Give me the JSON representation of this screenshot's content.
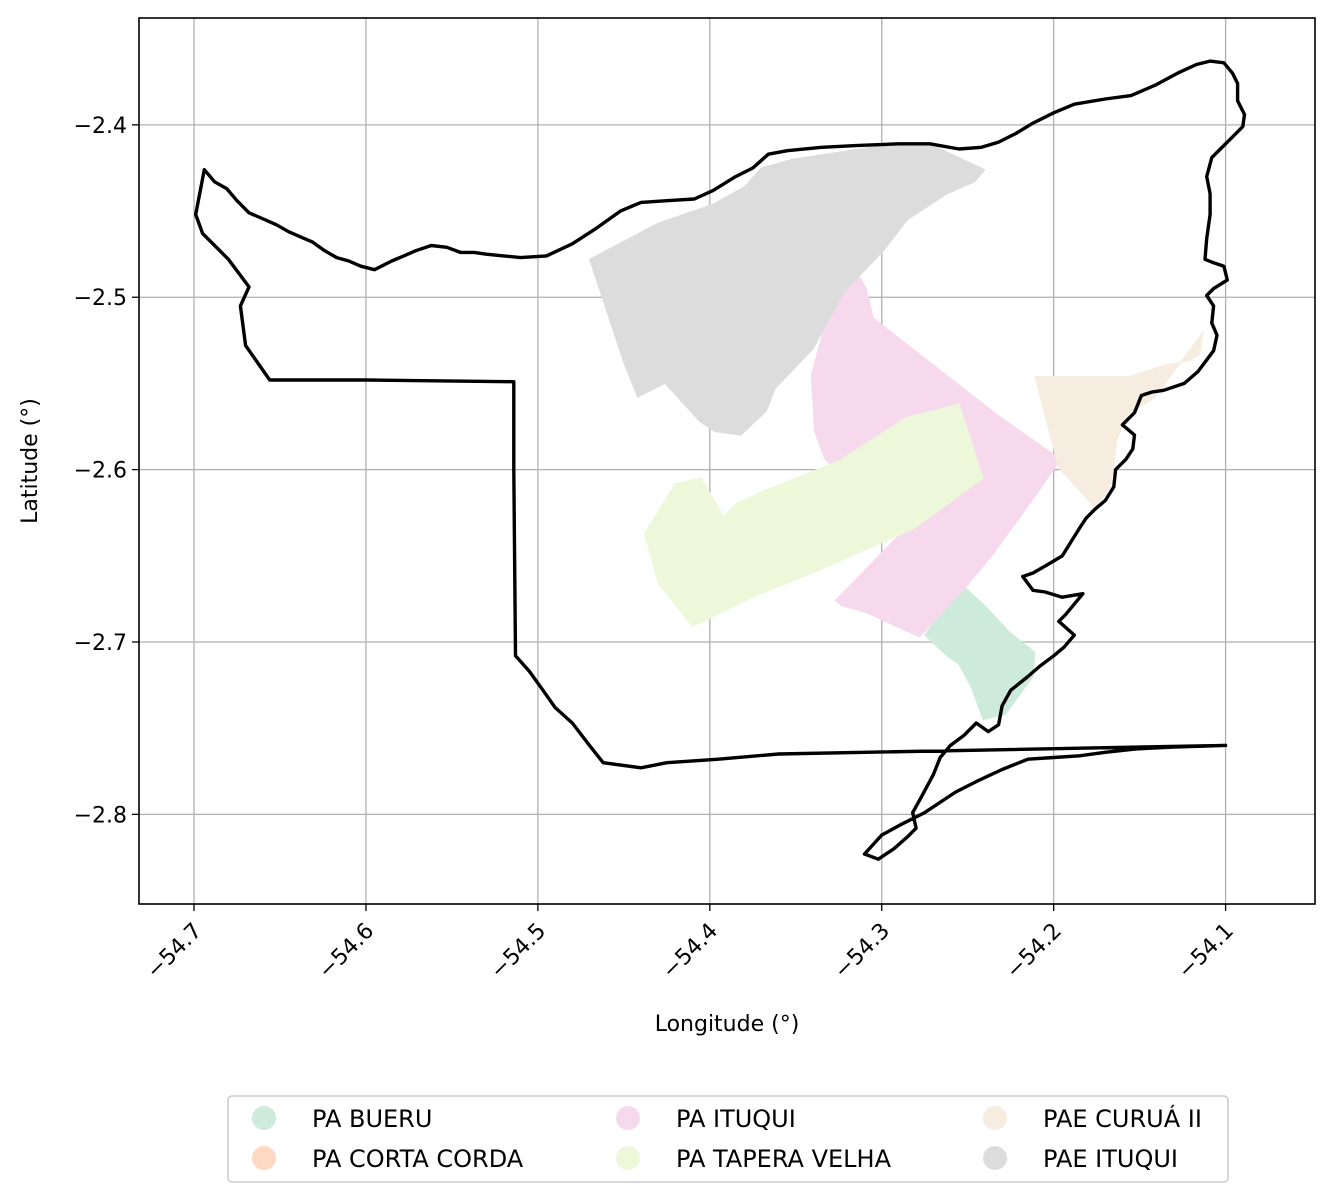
{
  "chart_data": {
    "type": "map",
    "xlabel": "Longitude (°)",
    "ylabel": "Latitude (°)",
    "xlim": [
      -54.732,
      -54.048
    ],
    "ylim": [
      -2.852,
      -2.338
    ],
    "grid": true,
    "legend_placement": "bottom-center",
    "x_ticks": [
      {
        "value": -54.7,
        "label": "−54.7"
      },
      {
        "value": -54.6,
        "label": "−54.6"
      },
      {
        "value": -54.5,
        "label": "−54.5"
      },
      {
        "value": -54.4,
        "label": "−54.4"
      },
      {
        "value": -54.3,
        "label": "−54.3"
      },
      {
        "value": -54.2,
        "label": "−54.2"
      },
      {
        "value": -54.1,
        "label": "−54.1"
      }
    ],
    "y_ticks": [
      {
        "value": -2.4,
        "label": "−2.4"
      },
      {
        "value": -2.5,
        "label": "−2.5"
      },
      {
        "value": -2.6,
        "label": "−2.6"
      },
      {
        "value": -2.7,
        "label": "−2.7"
      },
      {
        "value": -2.8,
        "label": "−2.8"
      }
    ],
    "boundary": {
      "color": "#000000",
      "points": [
        [
          -54.699,
          -2.452
        ],
        [
          -54.694,
          -2.426
        ],
        [
          -54.688,
          -2.433
        ],
        [
          -54.681,
          -2.437
        ],
        [
          -54.675,
          -2.444
        ],
        [
          -54.668,
          -2.451
        ],
        [
          -54.661,
          -2.454
        ],
        [
          -54.652,
          -2.458
        ],
        [
          -54.645,
          -2.462
        ],
        [
          -54.638,
          -2.465
        ],
        [
          -54.631,
          -2.468
        ],
        [
          -54.624,
          -2.473
        ],
        [
          -54.617,
          -2.477
        ],
        [
          -54.61,
          -2.479
        ],
        [
          -54.603,
          -2.482
        ],
        [
          -54.595,
          -2.484
        ],
        [
          -54.585,
          -2.479
        ],
        [
          -54.578,
          -2.476
        ],
        [
          -54.571,
          -2.473
        ],
        [
          -54.562,
          -2.47
        ],
        [
          -54.553,
          -2.471
        ],
        [
          -54.545,
          -2.474
        ],
        [
          -54.537,
          -2.474
        ],
        [
          -54.53,
          -2.475
        ],
        [
          -54.52,
          -2.476
        ],
        [
          -54.51,
          -2.477
        ],
        [
          -54.495,
          -2.476
        ],
        [
          -54.48,
          -2.469
        ],
        [
          -54.466,
          -2.46
        ],
        [
          -54.452,
          -2.45
        ],
        [
          -54.44,
          -2.445
        ],
        [
          -54.425,
          -2.444
        ],
        [
          -54.409,
          -2.443
        ],
        [
          -54.398,
          -2.438
        ],
        [
          -54.385,
          -2.43
        ],
        [
          -54.375,
          -2.425
        ],
        [
          -54.366,
          -2.417
        ],
        [
          -54.355,
          -2.415
        ],
        [
          -54.335,
          -2.413
        ],
        [
          -54.315,
          -2.412
        ],
        [
          -54.29,
          -2.411
        ],
        [
          -54.272,
          -2.411
        ],
        [
          -54.255,
          -2.414
        ],
        [
          -54.242,
          -2.413
        ],
        [
          -54.232,
          -2.41
        ],
        [
          -54.222,
          -2.405
        ],
        [
          -54.212,
          -2.399
        ],
        [
          -54.2,
          -2.393
        ],
        [
          -54.188,
          -2.388
        ],
        [
          -54.17,
          -2.385
        ],
        [
          -54.155,
          -2.383
        ],
        [
          -54.141,
          -2.377
        ],
        [
          -54.128,
          -2.37
        ],
        [
          -54.117,
          -2.365
        ],
        [
          -54.109,
          -2.363
        ],
        [
          -54.101,
          -2.364
        ],
        [
          -54.096,
          -2.37
        ],
        [
          -54.093,
          -2.376
        ],
        [
          -54.093,
          -2.386
        ],
        [
          -54.089,
          -2.394
        ],
        [
          -54.09,
          -2.401
        ],
        [
          -54.096,
          -2.407
        ],
        [
          -54.103,
          -2.414
        ],
        [
          -54.108,
          -2.419
        ],
        [
          -54.111,
          -2.43
        ],
        [
          -54.109,
          -2.44
        ],
        [
          -54.109,
          -2.452
        ],
        [
          -54.111,
          -2.466
        ],
        [
          -54.112,
          -2.478
        ],
        [
          -54.107,
          -2.48
        ],
        [
          -54.101,
          -2.482
        ],
        [
          -54.099,
          -2.49
        ],
        [
          -54.107,
          -2.495
        ],
        [
          -54.111,
          -2.499
        ],
        [
          -54.107,
          -2.505
        ],
        [
          -54.108,
          -2.515
        ],
        [
          -54.105,
          -2.522
        ],
        [
          -54.107,
          -2.531
        ],
        [
          -54.116,
          -2.543
        ],
        [
          -54.124,
          -2.55
        ],
        [
          -54.136,
          -2.554
        ],
        [
          -54.143,
          -2.555
        ],
        [
          -54.149,
          -2.557
        ],
        [
          -54.153,
          -2.567
        ],
        [
          -54.16,
          -2.574
        ],
        [
          -54.153,
          -2.58
        ],
        [
          -54.154,
          -2.588
        ],
        [
          -54.158,
          -2.594
        ],
        [
          -54.164,
          -2.6
        ],
        [
          -54.165,
          -2.61
        ],
        [
          -54.17,
          -2.618
        ],
        [
          -54.176,
          -2.623
        ],
        [
          -54.181,
          -2.628
        ],
        [
          -54.185,
          -2.634
        ],
        [
          -54.19,
          -2.642
        ],
        [
          -54.195,
          -2.65
        ],
        [
          -54.2,
          -2.653
        ],
        [
          -54.205,
          -2.656
        ],
        [
          -54.212,
          -2.66
        ],
        [
          -54.218,
          -2.662
        ],
        [
          -54.212,
          -2.67
        ],
        [
          -54.205,
          -2.671
        ],
        [
          -54.195,
          -2.674
        ],
        [
          -54.183,
          -2.672
        ],
        [
          -54.193,
          -2.684
        ],
        [
          -54.197,
          -2.688
        ],
        [
          -54.188,
          -2.696
        ],
        [
          -54.194,
          -2.703
        ],
        [
          -54.2,
          -2.708
        ],
        [
          -54.208,
          -2.714
        ],
        [
          -54.215,
          -2.72
        ],
        [
          -54.225,
          -2.728
        ],
        [
          -54.23,
          -2.737
        ],
        [
          -54.232,
          -2.748
        ],
        [
          -54.238,
          -2.752
        ],
        [
          -54.245,
          -2.747
        ],
        [
          -54.252,
          -2.754
        ],
        [
          -54.26,
          -2.76
        ],
        [
          -54.266,
          -2.767
        ],
        [
          -54.27,
          -2.777
        ],
        [
          -54.277,
          -2.79
        ],
        [
          -54.282,
          -2.799
        ],
        [
          -54.28,
          -2.808
        ],
        [
          -54.285,
          -2.813
        ],
        [
          -54.293,
          -2.82
        ],
        [
          -54.302,
          -2.826
        ],
        [
          -54.31,
          -2.823
        ],
        [
          -54.3,
          -2.812
        ],
        [
          -54.289,
          -2.806
        ],
        [
          -54.275,
          -2.799
        ],
        [
          -54.257,
          -2.787
        ],
        [
          -54.243,
          -2.78
        ],
        [
          -54.23,
          -2.774
        ],
        [
          -54.215,
          -2.768
        ],
        [
          -54.2,
          -2.767
        ],
        [
          -54.185,
          -2.766
        ],
        [
          -54.17,
          -2.764
        ],
        [
          -54.152,
          -2.762
        ],
        [
          -54.13,
          -2.761
        ],
        [
          -54.1,
          -2.76
        ],
        [
          -54.36,
          -2.765
        ],
        [
          -54.395,
          -2.768
        ],
        [
          -54.425,
          -2.77
        ],
        [
          -54.44,
          -2.773
        ],
        [
          -54.462,
          -2.77
        ],
        [
          -54.47,
          -2.76
        ],
        [
          -54.48,
          -2.747
        ],
        [
          -54.49,
          -2.738
        ],
        [
          -54.497,
          -2.728
        ],
        [
          -54.505,
          -2.717
        ],
        [
          -54.513,
          -2.708
        ],
        [
          -54.514,
          -2.6
        ],
        [
          -54.514,
          -2.549
        ],
        [
          -54.6,
          -2.548
        ],
        [
          -54.656,
          -2.548
        ],
        [
          -54.67,
          -2.528
        ],
        [
          -54.673,
          -2.505
        ],
        [
          -54.668,
          -2.494
        ],
        [
          -54.68,
          -2.478
        ],
        [
          -54.695,
          -2.463
        ],
        [
          -54.699,
          -2.452
        ]
      ]
    },
    "series": [
      {
        "name": "PA BUERU",
        "color": "#cdeadb",
        "polygons": [
          [
            [
              -54.275,
              -2.696
            ],
            [
              -54.253,
              -2.667
            ],
            [
              -54.239,
              -2.68
            ],
            [
              -54.226,
              -2.694
            ],
            [
              -54.211,
              -2.706
            ],
            [
              -54.212,
              -2.72
            ],
            [
              -54.228,
              -2.742
            ],
            [
              -54.241,
              -2.745
            ],
            [
              -54.248,
              -2.726
            ],
            [
              -54.255,
              -2.713
            ],
            [
              -54.262,
              -2.708
            ],
            [
              -54.275,
              -2.696
            ]
          ]
        ]
      },
      {
        "name": "PA CORTA CORDA",
        "color": "#fdd9c3",
        "polygons": []
      },
      {
        "name": "PA ITUQUI",
        "color": "#f6d9ed",
        "polygons": [
          [
            [
              -54.322,
              -2.487
            ],
            [
              -54.317,
              -2.481
            ],
            [
              -54.309,
              -2.495
            ],
            [
              -54.305,
              -2.512
            ],
            [
              -54.233,
              -2.568
            ],
            [
              -54.196,
              -2.594
            ],
            [
              -54.209,
              -2.613
            ],
            [
              -54.236,
              -2.65
            ],
            [
              -54.251,
              -2.668
            ],
            [
              -54.278,
              -2.697
            ],
            [
              -54.309,
              -2.683
            ],
            [
              -54.323,
              -2.679
            ],
            [
              -54.327,
              -2.676
            ],
            [
              -54.286,
              -2.634
            ],
            [
              -54.264,
              -2.608
            ],
            [
              -54.285,
              -2.596
            ],
            [
              -54.292,
              -2.588
            ],
            [
              -54.297,
              -2.589
            ],
            [
              -54.31,
              -2.61
            ],
            [
              -54.327,
              -2.6
            ],
            [
              -54.333,
              -2.594
            ],
            [
              -54.339,
              -2.578
            ],
            [
              -54.341,
              -2.545
            ],
            [
              -54.334,
              -2.52
            ],
            [
              -54.322,
              -2.487
            ]
          ]
        ]
      },
      {
        "name": "PA TAPERA VELHA",
        "color": "#edf8db",
        "polygons": [
          [
            [
              -54.41,
              -2.691
            ],
            [
              -54.43,
              -2.666
            ],
            [
              -54.438,
              -2.637
            ],
            [
              -54.42,
              -2.608
            ],
            [
              -54.405,
              -2.605
            ],
            [
              -54.392,
              -2.627
            ],
            [
              -54.385,
              -2.62
            ],
            [
              -54.368,
              -2.612
            ],
            [
              -54.325,
              -2.595
            ],
            [
              -54.286,
              -2.57
            ],
            [
              -54.255,
              -2.562
            ],
            [
              -54.241,
              -2.605
            ],
            [
              -54.281,
              -2.634
            ],
            [
              -54.34,
              -2.66
            ],
            [
              -54.373,
              -2.673
            ],
            [
              -54.41,
              -2.691
            ]
          ]
        ]
      },
      {
        "name": "PAE CURUÁ II",
        "color": "#f6ecdf",
        "polygons": [
          [
            [
              -54.211,
              -2.546
            ],
            [
              -54.156,
              -2.546
            ],
            [
              -54.134,
              -2.539
            ],
            [
              -54.121,
              -2.537
            ],
            [
              -54.115,
              -2.533
            ],
            [
              -54.113,
              -2.52
            ],
            [
              -54.142,
              -2.559
            ],
            [
              -54.156,
              -2.567
            ],
            [
              -54.163,
              -2.582
            ],
            [
              -54.167,
              -2.61
            ],
            [
              -54.176,
              -2.622
            ],
            [
              -54.197,
              -2.599
            ],
            [
              -54.211,
              -2.546
            ]
          ]
        ]
      },
      {
        "name": "PAE ITUQUI",
        "color": "#dcdcdc",
        "polygons": [
          [
            [
              -54.47,
              -2.478
            ],
            [
              -54.45,
              -2.538
            ],
            [
              -54.442,
              -2.558
            ],
            [
              -54.426,
              -2.55
            ],
            [
              -54.406,
              -2.572
            ],
            [
              -54.397,
              -2.578
            ],
            [
              -54.382,
              -2.58
            ],
            [
              -54.367,
              -2.566
            ],
            [
              -54.362,
              -2.553
            ],
            [
              -54.34,
              -2.53
            ],
            [
              -54.322,
              -2.497
            ],
            [
              -54.299,
              -2.473
            ],
            [
              -54.285,
              -2.455
            ],
            [
              -54.262,
              -2.44
            ],
            [
              -54.246,
              -2.433
            ],
            [
              -54.24,
              -2.426
            ],
            [
              -54.27,
              -2.412
            ],
            [
              -54.3,
              -2.412
            ],
            [
              -54.352,
              -2.42
            ],
            [
              -54.37,
              -2.425
            ],
            [
              -54.38,
              -2.436
            ],
            [
              -54.398,
              -2.446
            ],
            [
              -54.43,
              -2.457
            ],
            [
              -54.47,
              -2.478
            ]
          ]
        ]
      }
    ]
  }
}
